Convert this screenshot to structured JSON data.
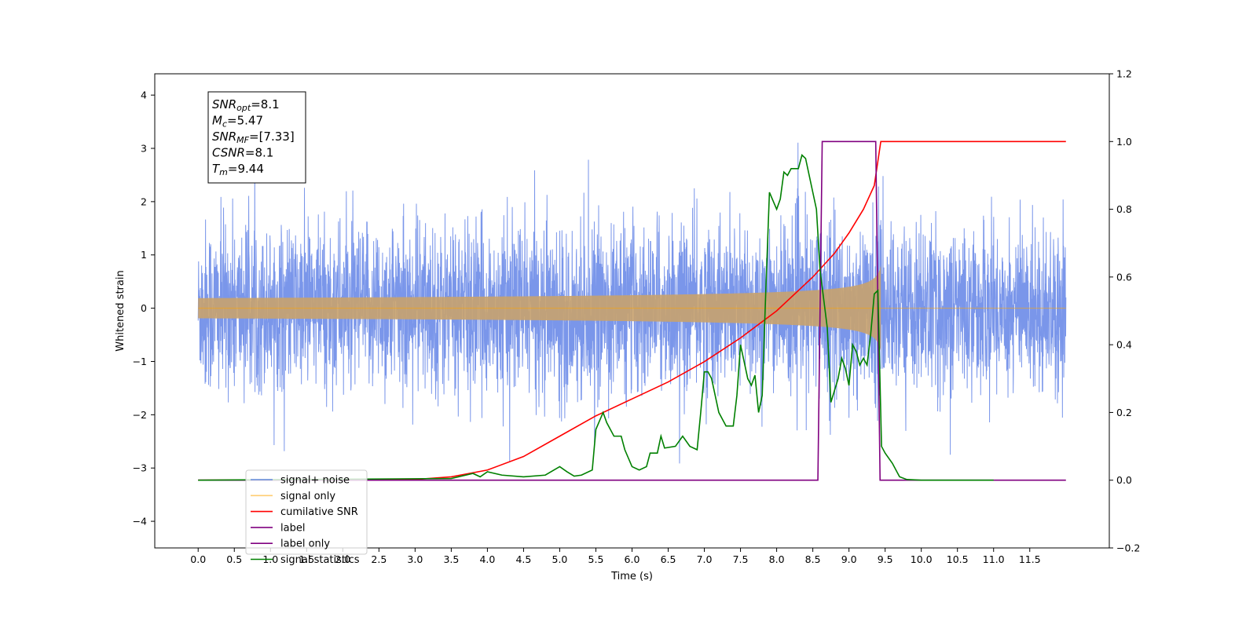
{
  "chart_data": {
    "type": "line",
    "xlabel": "Time (s)",
    "ylabel": "Whitened strain",
    "xlim": [
      -0.6,
      12.6
    ],
    "ylim": [
      -4.5,
      4.4
    ],
    "y2lim": [
      -0.2,
      1.2
    ],
    "x_ticks": [
      0.0,
      0.5,
      1.0,
      1.5,
      2.0,
      2.5,
      3.0,
      3.5,
      4.0,
      4.5,
      5.0,
      5.5,
      6.0,
      6.5,
      7.0,
      7.5,
      8.0,
      8.5,
      9.0,
      9.5,
      10.0,
      10.5,
      11.0,
      11.5
    ],
    "x_tick_labels": [
      "0.0",
      "0.5",
      "1.0",
      "1.5",
      "2.0",
      "2.5",
      "3.0",
      "3.5",
      "4.0",
      "4.5",
      "5.0",
      "5.5",
      "6.0",
      "6.5",
      "7.0",
      "7.5",
      "8.0",
      "8.5",
      "9.0",
      "9.5",
      "10.0",
      "10.5",
      "11.0",
      "11.5"
    ],
    "y_ticks": [
      -4,
      -3,
      -2,
      -1,
      0,
      1,
      2,
      3,
      4
    ],
    "y_tick_labels": [
      "−4",
      "−3",
      "−2",
      "−1",
      "0",
      "1",
      "2",
      "3",
      "4"
    ],
    "y2_ticks": [
      -0.2,
      0.0,
      0.2,
      0.4,
      0.6,
      0.8,
      1.0,
      1.2
    ],
    "y2_tick_labels": [
      "−0.2",
      "0.0",
      "0.2",
      "0.4",
      "0.6",
      "0.8",
      "1.0",
      "1.2"
    ],
    "grid": false,
    "legend_position": "lower-left",
    "annotation": {
      "lines": [
        {
          "main": "SNR",
          "sub": "opt",
          "rest": "=8.1"
        },
        {
          "main": "M",
          "sub": "c",
          "rest": "=5.47"
        },
        {
          "main": "SNR",
          "sub": "MF",
          "rest": "=[7.33]"
        },
        {
          "main": "CSNR",
          "sub": "",
          "rest": "=8.1"
        },
        {
          "main": "T",
          "sub": "m",
          "rest": "=9.44"
        }
      ]
    },
    "series": [
      {
        "name": "signal+ noise",
        "color": "#4169e1",
        "axis": "left",
        "noise_sigma": 0.75,
        "x_range": [
          0.0,
          12.0
        ],
        "merger_time": 9.44
      },
      {
        "name": "signal only",
        "color": "#ffa500",
        "axis": "left",
        "peak_amplitude": 0.8,
        "x_range": [
          0.0,
          12.0
        ],
        "merger_time": 9.44
      },
      {
        "name": "cumilative SNR",
        "color": "#ff0000",
        "axis": "right",
        "x": [
          0.0,
          3.0,
          3.5,
          4.0,
          4.5,
          5.0,
          5.5,
          6.0,
          6.5,
          7.0,
          7.5,
          8.0,
          8.5,
          8.8,
          9.0,
          9.2,
          9.35,
          9.44,
          12.0
        ],
        "values": [
          0.0,
          0.002,
          0.01,
          0.03,
          0.07,
          0.13,
          0.19,
          0.24,
          0.29,
          0.35,
          0.42,
          0.5,
          0.6,
          0.67,
          0.73,
          0.8,
          0.87,
          1.0,
          1.0
        ]
      },
      {
        "name": "label",
        "color": "#800080",
        "axis": "right",
        "x": [
          0.0,
          8.57,
          8.63,
          9.37,
          9.43,
          12.0
        ],
        "values": [
          0.0,
          0.0,
          1.0,
          1.0,
          0.0,
          0.0
        ]
      },
      {
        "name": "label only",
        "color": "#800080",
        "axis": "right",
        "hidden_behind_legend": true
      },
      {
        "name": "signal statistics",
        "color": "#008000",
        "axis": "right",
        "x": [
          0.0,
          3.5,
          3.8,
          3.9,
          4.0,
          4.2,
          4.5,
          4.8,
          5.0,
          5.1,
          5.2,
          5.3,
          5.45,
          5.5,
          5.6,
          5.65,
          5.75,
          5.85,
          5.9,
          6.0,
          6.1,
          6.2,
          6.25,
          6.35,
          6.4,
          6.45,
          6.6,
          6.7,
          6.8,
          6.9,
          6.95,
          7.0,
          7.05,
          7.1,
          7.2,
          7.3,
          7.4,
          7.45,
          7.5,
          7.55,
          7.6,
          7.65,
          7.7,
          7.75,
          7.8,
          7.85,
          7.9,
          8.0,
          8.05,
          8.1,
          8.15,
          8.2,
          8.3,
          8.35,
          8.4,
          8.45,
          8.5,
          8.55,
          8.6,
          8.7,
          8.75,
          8.85,
          8.9,
          8.95,
          9.0,
          9.05,
          9.1,
          9.15,
          9.2,
          9.25,
          9.3,
          9.35,
          9.4,
          9.45,
          9.5,
          9.6,
          9.7,
          9.8,
          10.0,
          11.0
        ],
        "values": [
          0.0,
          0.005,
          0.02,
          0.01,
          0.025,
          0.015,
          0.01,
          0.015,
          0.04,
          0.025,
          0.012,
          0.015,
          0.03,
          0.15,
          0.2,
          0.17,
          0.13,
          0.13,
          0.09,
          0.04,
          0.03,
          0.04,
          0.08,
          0.08,
          0.13,
          0.095,
          0.1,
          0.13,
          0.1,
          0.09,
          0.2,
          0.32,
          0.32,
          0.3,
          0.2,
          0.16,
          0.16,
          0.25,
          0.4,
          0.35,
          0.3,
          0.28,
          0.31,
          0.2,
          0.25,
          0.56,
          0.85,
          0.8,
          0.83,
          0.91,
          0.9,
          0.92,
          0.92,
          0.96,
          0.95,
          0.9,
          0.85,
          0.8,
          0.62,
          0.45,
          0.23,
          0.3,
          0.36,
          0.33,
          0.28,
          0.4,
          0.38,
          0.34,
          0.36,
          0.34,
          0.43,
          0.55,
          0.56,
          0.1,
          0.08,
          0.05,
          0.01,
          0.002,
          0.0,
          0.0
        ]
      }
    ]
  }
}
